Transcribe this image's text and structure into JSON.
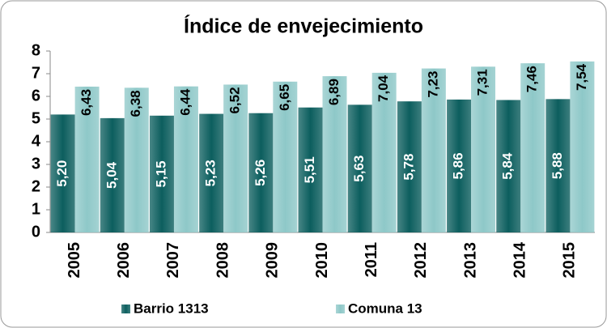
{
  "chart_data": {
    "type": "bar",
    "title": "Índice de envejecimiento",
    "categories": [
      "2005",
      "2006",
      "2007",
      "2008",
      "2009",
      "2010",
      "2011",
      "2012",
      "2013",
      "2014",
      "2015"
    ],
    "series": [
      {
        "name": "Barrio 1313",
        "color": "#0c5e5e",
        "values": [
          5.2,
          5.04,
          5.15,
          5.23,
          5.26,
          5.51,
          5.63,
          5.78,
          5.86,
          5.84,
          5.88
        ],
        "value_labels": [
          "5,20",
          "5,04",
          "5,15",
          "5,23",
          "5,26",
          "5,51",
          "5,63",
          "5,78",
          "5,86",
          "5,84",
          "5,88"
        ]
      },
      {
        "name": "Comuna 13",
        "color": "#8ec8c8",
        "values": [
          6.43,
          6.38,
          6.44,
          6.52,
          6.65,
          6.89,
          7.04,
          7.23,
          7.31,
          7.46,
          7.54
        ],
        "value_labels": [
          "6,43",
          "6,38",
          "6,44",
          "6,52",
          "6,65",
          "6,89",
          "7,04",
          "7,23",
          "7,31",
          "7,46",
          "7,54"
        ]
      }
    ],
    "ylim": [
      0,
      8
    ],
    "yticks": [
      0,
      1,
      2,
      3,
      4,
      5,
      6,
      7,
      8
    ],
    "grid": false,
    "legend": "bottom"
  }
}
